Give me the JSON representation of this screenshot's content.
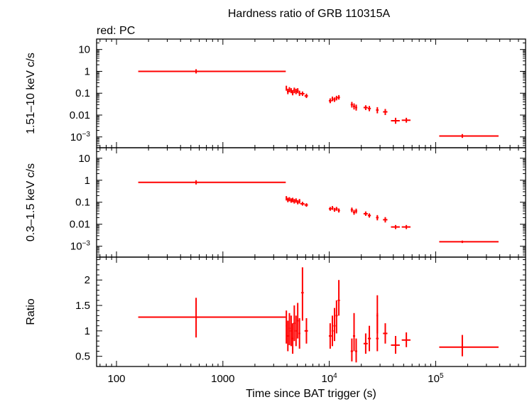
{
  "title": "Hardness ratio of GRB 110315A",
  "subtitle": "red: PC",
  "colors": {
    "data": "#ff0000",
    "axes": "#000000",
    "background": "#ffffff"
  },
  "chart_data": {
    "type": "scatter",
    "xlabel": "Time since BAT trigger (s)",
    "xscale": "log",
    "xlim": [
      65,
      700000
    ],
    "xticks": [
      {
        "value": 100,
        "label": "100"
      },
      {
        "value": 1000,
        "label": "1000"
      },
      {
        "value": 10000,
        "label": "10^4"
      },
      {
        "value": 100000,
        "label": "10^5"
      }
    ],
    "panels": [
      {
        "name": "hard",
        "ylabel": "1.51–10 keV c/s",
        "yscale": "log",
        "ylim": [
          0.00032,
          30
        ],
        "yticks": [
          {
            "value": 10,
            "label": "10"
          },
          {
            "value": 1,
            "label": "1"
          },
          {
            "value": 0.1,
            "label": "0.1"
          },
          {
            "value": 0.01,
            "label": "0.01"
          },
          {
            "value": 0.001,
            "label": "10^−3"
          }
        ],
        "points": [
          {
            "x": 560,
            "xlo": 160,
            "xhi": 3900,
            "y": 1.0
          },
          {
            "x": 3950,
            "xlo": 3900,
            "xhi": 4000,
            "y": 0.17,
            "ylo": 0.13,
            "yhi": 0.22
          },
          {
            "x": 4080,
            "xlo": 4000,
            "xhi": 4150,
            "y": 0.12,
            "ylo": 0.09,
            "yhi": 0.16
          },
          {
            "x": 4220,
            "xlo": 4150,
            "xhi": 4300,
            "y": 0.15,
            "ylo": 0.11,
            "yhi": 0.19
          },
          {
            "x": 4380,
            "xlo": 4300,
            "xhi": 4450,
            "y": 0.13,
            "ylo": 0.1,
            "yhi": 0.17
          },
          {
            "x": 4530,
            "xlo": 4450,
            "xhi": 4600,
            "y": 0.11,
            "ylo": 0.08,
            "yhi": 0.14
          },
          {
            "x": 4690,
            "xlo": 4600,
            "xhi": 4780,
            "y": 0.14,
            "ylo": 0.1,
            "yhi": 0.18
          },
          {
            "x": 4870,
            "xlo": 4780,
            "xhi": 4960,
            "y": 0.12,
            "ylo": 0.09,
            "yhi": 0.16
          },
          {
            "x": 5050,
            "xlo": 4960,
            "xhi": 5150,
            "y": 0.13,
            "ylo": 0.1,
            "yhi": 0.17
          },
          {
            "x": 5250,
            "xlo": 5150,
            "xhi": 5350,
            "y": 0.1,
            "ylo": 0.075,
            "yhi": 0.13
          },
          {
            "x": 5600,
            "xlo": 5350,
            "xhi": 5850,
            "y": 0.095,
            "ylo": 0.075,
            "yhi": 0.12
          },
          {
            "x": 6100,
            "xlo": 5850,
            "xhi": 6300,
            "y": 0.075,
            "ylo": 0.06,
            "yhi": 0.095
          },
          {
            "x": 10200,
            "xlo": 9900,
            "xhi": 10500,
            "y": 0.045,
            "ylo": 0.035,
            "yhi": 0.058
          },
          {
            "x": 10700,
            "xlo": 10500,
            "xhi": 10950,
            "y": 0.055,
            "ylo": 0.043,
            "yhi": 0.07
          },
          {
            "x": 11200,
            "xlo": 10950,
            "xhi": 11450,
            "y": 0.05,
            "ylo": 0.04,
            "yhi": 0.064
          },
          {
            "x": 11700,
            "xlo": 11450,
            "xhi": 12000,
            "y": 0.06,
            "ylo": 0.047,
            "yhi": 0.076
          },
          {
            "x": 12300,
            "xlo": 12000,
            "xhi": 12600,
            "y": 0.065,
            "ylo": 0.051,
            "yhi": 0.082
          },
          {
            "x": 16300,
            "xlo": 15900,
            "xhi": 16700,
            "y": 0.03,
            "ylo": 0.022,
            "yhi": 0.04
          },
          {
            "x": 17100,
            "xlo": 16700,
            "xhi": 17500,
            "y": 0.025,
            "ylo": 0.018,
            "yhi": 0.034
          },
          {
            "x": 17900,
            "xlo": 17500,
            "xhi": 18300,
            "y": 0.022,
            "ylo": 0.016,
            "yhi": 0.03
          },
          {
            "x": 22000,
            "xlo": 21000,
            "xhi": 23000,
            "y": 0.022,
            "ylo": 0.017,
            "yhi": 0.028
          },
          {
            "x": 23800,
            "xlo": 23000,
            "xhi": 24600,
            "y": 0.02,
            "ylo": 0.015,
            "yhi": 0.026
          },
          {
            "x": 28300,
            "xlo": 27500,
            "xhi": 29100,
            "y": 0.017,
            "ylo": 0.012,
            "yhi": 0.023
          },
          {
            "x": 33600,
            "xlo": 32000,
            "xhi": 35200,
            "y": 0.014,
            "ylo": 0.01,
            "yhi": 0.019
          },
          {
            "x": 42000,
            "xlo": 38000,
            "xhi": 46000,
            "y": 0.0055,
            "ylo": 0.004,
            "yhi": 0.0075
          },
          {
            "x": 53000,
            "xlo": 48000,
            "xhi": 58000,
            "y": 0.0058,
            "ylo": 0.0045,
            "yhi": 0.0075
          },
          {
            "x": 178000,
            "xlo": 108000,
            "xhi": 390000,
            "y": 0.0011,
            "ylo": 0.0009,
            "yhi": 0.00135
          }
        ]
      },
      {
        "name": "soft",
        "ylabel": "0.3–1.5 keV c/s",
        "yscale": "log",
        "ylim": [
          0.00032,
          30
        ],
        "yticks": [
          {
            "value": 10,
            "label": "10"
          },
          {
            "value": 1,
            "label": "1"
          },
          {
            "value": 0.1,
            "label": "0.1"
          },
          {
            "value": 0.01,
            "label": "0.01"
          },
          {
            "value": 0.001,
            "label": "10^−3"
          }
        ],
        "points": [
          {
            "x": 560,
            "xlo": 160,
            "xhi": 3900,
            "y": 0.8
          },
          {
            "x": 3950,
            "xlo": 3900,
            "xhi": 4000,
            "y": 0.15,
            "ylo": 0.12,
            "yhi": 0.19
          },
          {
            "x": 4080,
            "xlo": 4000,
            "xhi": 4150,
            "y": 0.13,
            "ylo": 0.1,
            "yhi": 0.16
          },
          {
            "x": 4220,
            "xlo": 4150,
            "xhi": 4300,
            "y": 0.14,
            "ylo": 0.11,
            "yhi": 0.17
          },
          {
            "x": 4380,
            "xlo": 4300,
            "xhi": 4450,
            "y": 0.12,
            "ylo": 0.095,
            "yhi": 0.15
          },
          {
            "x": 4530,
            "xlo": 4450,
            "xhi": 4600,
            "y": 0.13,
            "ylo": 0.1,
            "yhi": 0.16
          },
          {
            "x": 4690,
            "xlo": 4600,
            "xhi": 4780,
            "y": 0.11,
            "ylo": 0.087,
            "yhi": 0.14
          },
          {
            "x": 4870,
            "xlo": 4780,
            "xhi": 4960,
            "y": 0.12,
            "ylo": 0.095,
            "yhi": 0.15
          },
          {
            "x": 5050,
            "xlo": 4960,
            "xhi": 5150,
            "y": 0.1,
            "ylo": 0.08,
            "yhi": 0.125
          },
          {
            "x": 5250,
            "xlo": 5150,
            "xhi": 5350,
            "y": 0.11,
            "ylo": 0.087,
            "yhi": 0.14
          },
          {
            "x": 5600,
            "xlo": 5350,
            "xhi": 5850,
            "y": 0.085,
            "ylo": 0.07,
            "yhi": 0.105
          },
          {
            "x": 6100,
            "xlo": 5850,
            "xhi": 6300,
            "y": 0.075,
            "ylo": 0.062,
            "yhi": 0.09
          },
          {
            "x": 10200,
            "xlo": 9900,
            "xhi": 10500,
            "y": 0.05,
            "ylo": 0.041,
            "yhi": 0.061
          },
          {
            "x": 10700,
            "xlo": 10500,
            "xhi": 10950,
            "y": 0.055,
            "ylo": 0.045,
            "yhi": 0.067
          },
          {
            "x": 11200,
            "xlo": 10950,
            "xhi": 11450,
            "y": 0.045,
            "ylo": 0.037,
            "yhi": 0.055
          },
          {
            "x": 11700,
            "xlo": 11450,
            "xhi": 12000,
            "y": 0.05,
            "ylo": 0.041,
            "yhi": 0.061
          },
          {
            "x": 12300,
            "xlo": 12000,
            "xhi": 12600,
            "y": 0.042,
            "ylo": 0.034,
            "yhi": 0.052
          },
          {
            "x": 16300,
            "xlo": 15900,
            "xhi": 16700,
            "y": 0.045,
            "ylo": 0.035,
            "yhi": 0.057
          },
          {
            "x": 17100,
            "xlo": 16700,
            "xhi": 17500,
            "y": 0.035,
            "ylo": 0.027,
            "yhi": 0.045
          },
          {
            "x": 17900,
            "xlo": 17500,
            "xhi": 18300,
            "y": 0.04,
            "ylo": 0.031,
            "yhi": 0.051
          },
          {
            "x": 22000,
            "xlo": 21000,
            "xhi": 23000,
            "y": 0.03,
            "ylo": 0.024,
            "yhi": 0.038
          },
          {
            "x": 23800,
            "xlo": 23000,
            "xhi": 24600,
            "y": 0.025,
            "ylo": 0.02,
            "yhi": 0.031
          },
          {
            "x": 28300,
            "xlo": 27500,
            "xhi": 29100,
            "y": 0.02,
            "ylo": 0.015,
            "yhi": 0.026
          },
          {
            "x": 33600,
            "xlo": 32000,
            "xhi": 35200,
            "y": 0.016,
            "ylo": 0.012,
            "yhi": 0.021
          },
          {
            "x": 42000,
            "xlo": 38000,
            "xhi": 46000,
            "y": 0.0075,
            "ylo": 0.006,
            "yhi": 0.0092
          },
          {
            "x": 53000,
            "xlo": 48000,
            "xhi": 58000,
            "y": 0.0075,
            "ylo": 0.006,
            "yhi": 0.0092
          },
          {
            "x": 178000,
            "xlo": 108000,
            "xhi": 390000,
            "y": 0.0016,
            "ylo": 0.0014,
            "yhi": 0.0018
          }
        ]
      },
      {
        "name": "ratio",
        "ylabel": "Ratio",
        "yscale": "linear",
        "ylim": [
          0.3,
          2.45
        ],
        "yticks": [
          {
            "value": 2,
            "label": "2"
          },
          {
            "value": 1.5,
            "label": "1.5"
          },
          {
            "value": 1,
            "label": "1"
          },
          {
            "value": 0.5,
            "label": "0.5"
          }
        ],
        "points": [
          {
            "x": 560,
            "xlo": 160,
            "xhi": 3900,
            "y": 1.27,
            "ylo": 0.87,
            "yhi": 1.65
          },
          {
            "x": 3950,
            "xlo": 3900,
            "xhi": 4000,
            "y": 1.1,
            "ylo": 0.75,
            "yhi": 1.4
          },
          {
            "x": 4080,
            "xlo": 4000,
            "xhi": 4150,
            "y": 0.9,
            "ylo": 0.6,
            "yhi": 1.2
          },
          {
            "x": 4220,
            "xlo": 4150,
            "xhi": 4300,
            "y": 1.05,
            "ylo": 0.72,
            "yhi": 1.35
          },
          {
            "x": 4380,
            "xlo": 4300,
            "xhi": 4450,
            "y": 1.0,
            "ylo": 0.7,
            "yhi": 1.3
          },
          {
            "x": 4530,
            "xlo": 4450,
            "xhi": 4600,
            "y": 0.85,
            "ylo": 0.55,
            "yhi": 1.15
          },
          {
            "x": 4690,
            "xlo": 4600,
            "xhi": 4780,
            "y": 1.15,
            "ylo": 0.8,
            "yhi": 1.5
          },
          {
            "x": 4870,
            "xlo": 4780,
            "xhi": 4960,
            "y": 1.0,
            "ylo": 0.7,
            "yhi": 1.3
          },
          {
            "x": 5050,
            "xlo": 4960,
            "xhi": 5150,
            "y": 1.2,
            "ylo": 0.85,
            "yhi": 1.55
          },
          {
            "x": 5250,
            "xlo": 5150,
            "xhi": 5350,
            "y": 0.95,
            "ylo": 0.65,
            "yhi": 1.25
          },
          {
            "x": 5600,
            "xlo": 5450,
            "xhi": 5750,
            "y": 1.75,
            "ylo": 1.2,
            "yhi": 2.25
          },
          {
            "x": 6100,
            "xlo": 5850,
            "xhi": 6300,
            "y": 1.0,
            "ylo": 0.75,
            "yhi": 1.25
          },
          {
            "x": 10200,
            "xlo": 9900,
            "xhi": 10500,
            "y": 0.9,
            "ylo": 0.65,
            "yhi": 1.15
          },
          {
            "x": 10700,
            "xlo": 10500,
            "xhi": 10950,
            "y": 1.0,
            "ylo": 0.7,
            "yhi": 1.3
          },
          {
            "x": 11200,
            "xlo": 10950,
            "xhi": 11450,
            "y": 1.1,
            "ylo": 0.8,
            "yhi": 1.45
          },
          {
            "x": 11700,
            "xlo": 11450,
            "xhi": 12000,
            "y": 1.3,
            "ylo": 0.95,
            "yhi": 1.6
          },
          {
            "x": 12300,
            "xlo": 12000,
            "xhi": 12600,
            "y": 1.6,
            "ylo": 1.3,
            "yhi": 2.0
          },
          {
            "x": 16300,
            "xlo": 15900,
            "xhi": 16700,
            "y": 0.6,
            "ylo": 0.4,
            "yhi": 0.85
          },
          {
            "x": 17100,
            "xlo": 16700,
            "xhi": 17500,
            "y": 0.9,
            "ylo": 0.6,
            "yhi": 1.35
          },
          {
            "x": 17900,
            "xlo": 17500,
            "xhi": 18300,
            "y": 0.6,
            "ylo": 0.38,
            "yhi": 0.85
          },
          {
            "x": 22000,
            "xlo": 21000,
            "xhi": 23000,
            "y": 0.75,
            "ylo": 0.55,
            "yhi": 0.95
          },
          {
            "x": 23800,
            "xlo": 23000,
            "xhi": 24600,
            "y": 0.85,
            "ylo": 0.6,
            "yhi": 1.1
          },
          {
            "x": 28300,
            "xlo": 27500,
            "xhi": 29100,
            "y": 0.85,
            "ylo": 0.6,
            "yhi": 1.35
          },
          {
            "x": 28300,
            "xlo": 27800,
            "xhi": 28800,
            "y": 1.3,
            "ylo": 0.95,
            "yhi": 1.7
          },
          {
            "x": 33600,
            "xlo": 32000,
            "xhi": 35200,
            "y": 0.95,
            "ylo": 0.75,
            "yhi": 1.15
          },
          {
            "x": 42000,
            "xlo": 38000,
            "xhi": 46000,
            "y": 0.72,
            "ylo": 0.55,
            "yhi": 0.9
          },
          {
            "x": 53000,
            "xlo": 48000,
            "xhi": 58000,
            "y": 0.82,
            "ylo": 0.68,
            "yhi": 0.97
          },
          {
            "x": 178000,
            "xlo": 108000,
            "xhi": 390000,
            "y": 0.68,
            "ylo": 0.5,
            "yhi": 0.92
          }
        ]
      }
    ]
  }
}
